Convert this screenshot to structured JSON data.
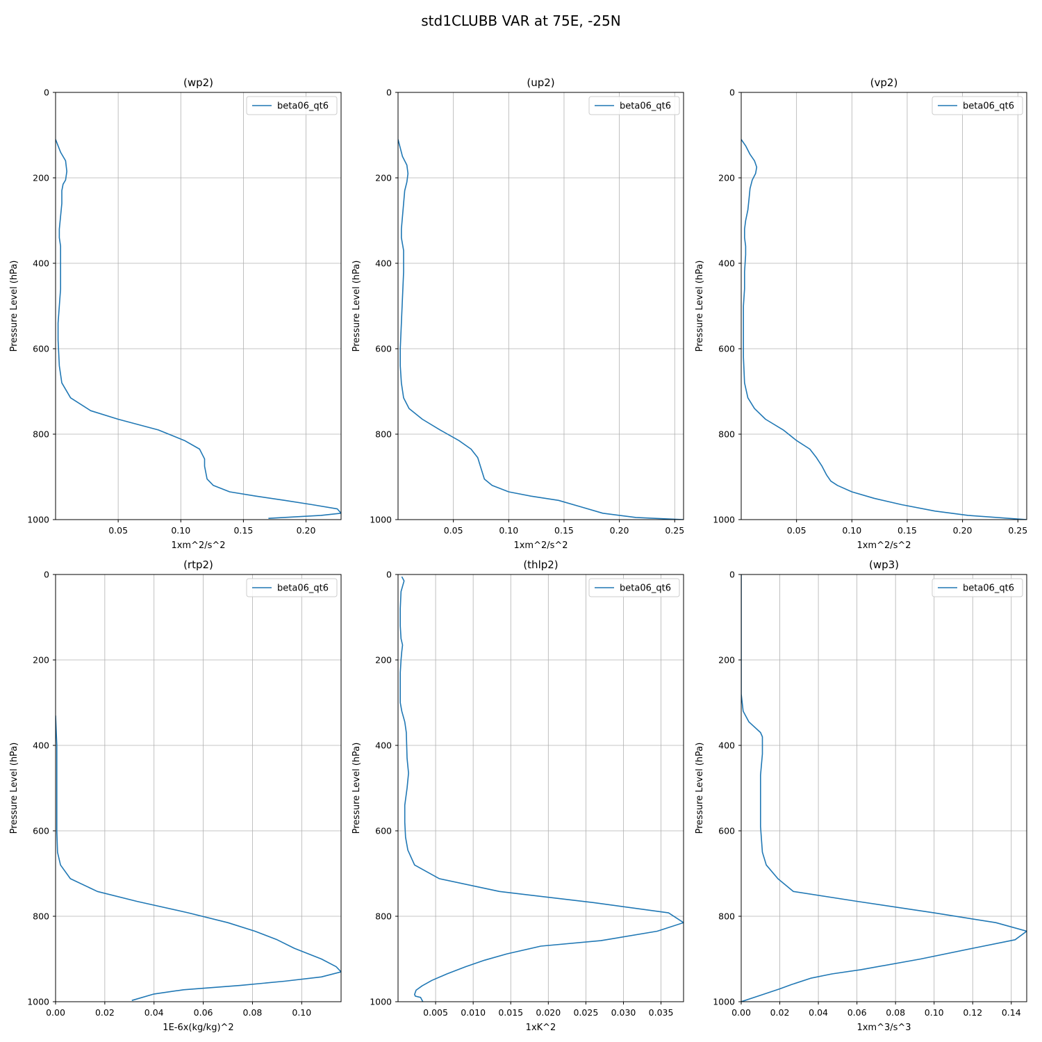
{
  "figure": {
    "title": "std1CLUBB VAR at 75E, -25N",
    "line_color": "#1f77b4"
  },
  "chart_data": [
    {
      "type": "line",
      "title": "(wp2)",
      "xlabel": "1xm^2/s^2",
      "ylabel": "Pressure Level (hPa)",
      "xlim": [
        0.0,
        0.228
      ],
      "ylim": [
        1000,
        0
      ],
      "xticks": [
        0.05,
        0.1,
        0.15,
        0.2
      ],
      "xtick_labels": [
        "0.05",
        "0.10",
        "0.15",
        "0.20"
      ],
      "yticks": [
        0,
        200,
        400,
        600,
        800,
        1000
      ],
      "ytick_labels": [
        "0",
        "200",
        "400",
        "600",
        "800",
        "1000"
      ],
      "grid": true,
      "legend": "top-right",
      "series": [
        {
          "name": "beta06_qt6",
          "x": [
            0.0,
            0.004,
            0.008,
            0.009,
            0.008,
            0.006,
            0.005,
            0.005,
            0.004,
            0.003,
            0.003,
            0.004,
            0.004,
            0.004,
            0.004,
            0.003,
            0.002,
            0.002,
            0.003,
            0.005,
            0.012,
            0.028,
            0.05,
            0.082,
            0.103,
            0.115,
            0.119,
            0.119,
            0.121,
            0.126,
            0.139,
            0.16,
            0.183,
            0.205,
            0.225,
            0.228,
            0.212,
            0.17
          ],
          "y": [
            110,
            140,
            160,
            185,
            205,
            215,
            230,
            260,
            290,
            320,
            340,
            360,
            380,
            420,
            460,
            500,
            540,
            580,
            640,
            680,
            715,
            745,
            765,
            790,
            815,
            835,
            858,
            875,
            905,
            920,
            935,
            945,
            955,
            965,
            975,
            985,
            990,
            997
          ]
        }
      ]
    },
    {
      "type": "line",
      "title": "(up2)",
      "xlabel": "1xm^2/s^2",
      "ylabel": "Pressure Level (hPa)",
      "xlim": [
        0.0,
        0.258
      ],
      "ylim": [
        1000,
        0
      ],
      "xticks": [
        0.05,
        0.1,
        0.15,
        0.2,
        0.25
      ],
      "xtick_labels": [
        "0.05",
        "0.10",
        "0.15",
        "0.20",
        "0.25"
      ],
      "yticks": [
        0,
        200,
        400,
        600,
        800,
        1000
      ],
      "ytick_labels": [
        "0",
        "200",
        "400",
        "600",
        "800",
        "1000"
      ],
      "grid": true,
      "legend": "top-right",
      "series": [
        {
          "name": "beta06_qt6",
          "x": [
            0.0,
            0.004,
            0.008,
            0.009,
            0.008,
            0.006,
            0.005,
            0.004,
            0.003,
            0.003,
            0.005,
            0.005,
            0.004,
            0.003,
            0.002,
            0.002,
            0.003,
            0.005,
            0.01,
            0.022,
            0.038,
            0.055,
            0.066,
            0.072,
            0.075,
            0.078,
            0.085,
            0.1,
            0.12,
            0.145,
            0.165,
            0.185,
            0.215,
            0.258
          ],
          "y": [
            110,
            150,
            170,
            190,
            210,
            230,
            260,
            290,
            320,
            340,
            370,
            420,
            480,
            540,
            600,
            640,
            680,
            715,
            740,
            765,
            790,
            815,
            835,
            855,
            880,
            905,
            920,
            935,
            945,
            955,
            970,
            985,
            995,
            1000
          ]
        }
      ]
    },
    {
      "type": "line",
      "title": "(vp2)",
      "xlabel": "1xm^2/s^2",
      "ylabel": "Pressure Level (hPa)",
      "xlim": [
        0.0,
        0.258
      ],
      "ylim": [
        1000,
        0
      ],
      "xticks": [
        0.05,
        0.1,
        0.15,
        0.2,
        0.25
      ],
      "xtick_labels": [
        "0.05",
        "0.10",
        "0.15",
        "0.20",
        "0.25"
      ],
      "yticks": [
        0,
        200,
        400,
        600,
        800,
        1000
      ],
      "ytick_labels": [
        "0",
        "200",
        "400",
        "600",
        "800",
        "1000"
      ],
      "grid": true,
      "legend": "top-right",
      "series": [
        {
          "name": "beta06_qt6",
          "x": [
            0.0,
            0.004,
            0.008,
            0.012,
            0.014,
            0.013,
            0.01,
            0.008,
            0.007,
            0.006,
            0.004,
            0.003,
            0.003,
            0.004,
            0.004,
            0.003,
            0.003,
            0.002,
            0.002,
            0.002,
            0.003,
            0.006,
            0.012,
            0.022,
            0.038,
            0.05,
            0.062,
            0.068,
            0.073,
            0.077,
            0.081,
            0.087,
            0.1,
            0.12,
            0.145,
            0.175,
            0.205,
            0.258
          ],
          "y": [
            110,
            125,
            145,
            160,
            175,
            190,
            205,
            225,
            250,
            275,
            300,
            320,
            340,
            360,
            380,
            420,
            460,
            500,
            560,
            620,
            680,
            715,
            740,
            765,
            790,
            815,
            835,
            855,
            875,
            895,
            910,
            920,
            935,
            950,
            965,
            980,
            990,
            1000
          ]
        }
      ]
    },
    {
      "type": "line",
      "title": "(rtp2)",
      "xlabel": "1E-6x(kg/kg)^2",
      "ylabel": "Pressure Level (hPa)",
      "xlim": [
        0.0,
        0.116
      ],
      "ylim": [
        1000,
        0
      ],
      "xticks": [
        0.0,
        0.02,
        0.04,
        0.06,
        0.08,
        0.1
      ],
      "xtick_labels": [
        "0.00",
        "0.02",
        "0.04",
        "0.06",
        "0.08",
        "0.10"
      ],
      "yticks": [
        0,
        200,
        400,
        600,
        800,
        1000
      ],
      "ytick_labels": [
        "0",
        "200",
        "400",
        "600",
        "800",
        "1000"
      ],
      "grid": true,
      "legend": "top-right",
      "series": [
        {
          "name": "beta06_qt6",
          "x": [
            0.0,
            0.0005,
            0.0005,
            0.0005,
            0.0008,
            0.002,
            0.006,
            0.017,
            0.033,
            0.054,
            0.07,
            0.081,
            0.09,
            0.097,
            0.108,
            0.114,
            0.116,
            0.108,
            0.093,
            0.075,
            0.052,
            0.04,
            0.031
          ],
          "y": [
            330,
            400,
            500,
            600,
            650,
            680,
            712,
            742,
            765,
            792,
            815,
            835,
            855,
            875,
            900,
            918,
            930,
            942,
            952,
            962,
            972,
            982,
            997
          ]
        }
      ]
    },
    {
      "type": "line",
      "title": "(thlp2)",
      "xlabel": "1xK^2",
      "ylabel": "Pressure Level (hPa)",
      "xlim": [
        0.0,
        0.038
      ],
      "ylim": [
        1000,
        0
      ],
      "xticks": [
        0.005,
        0.01,
        0.015,
        0.02,
        0.025,
        0.03,
        0.035
      ],
      "xtick_labels": [
        "0.005",
        "0.010",
        "0.015",
        "0.020",
        "0.025",
        "0.030",
        "0.035"
      ],
      "yticks": [
        0,
        200,
        400,
        600,
        800,
        1000
      ],
      "ytick_labels": [
        "0",
        "200",
        "400",
        "600",
        "800",
        "1000"
      ],
      "grid": true,
      "legend": "top-right",
      "series": [
        {
          "name": "beta06_qt6",
          "x": [
            0.0005,
            0.0008,
            0.0004,
            0.0003,
            0.0003,
            0.0004,
            0.0006,
            0.0005,
            0.0004,
            0.0003,
            0.0003,
            0.0003,
            0.0003,
            0.0005,
            0.0009,
            0.0011,
            0.0012,
            0.0014,
            0.0012,
            0.0009,
            0.0009,
            0.001,
            0.0013,
            0.0022,
            0.0055,
            0.0135,
            0.026,
            0.036,
            0.038,
            0.0345,
            0.027,
            0.019,
            0.0145,
            0.0115,
            0.009,
            0.0065,
            0.0045,
            0.0032,
            0.0024,
            0.0022,
            0.0023,
            0.003,
            0.0033
          ],
          "y": [
            5,
            15,
            40,
            80,
            120,
            150,
            165,
            180,
            200,
            230,
            260,
            280,
            300,
            320,
            345,
            370,
            430,
            465,
            500,
            540,
            580,
            615,
            645,
            680,
            712,
            742,
            768,
            792,
            815,
            835,
            857,
            870,
            888,
            903,
            918,
            935,
            950,
            963,
            973,
            983,
            987,
            990,
            1000
          ]
        }
      ]
    },
    {
      "type": "line",
      "title": "(wp3)",
      "xlabel": "1xm^3/s^3",
      "ylabel": "Pressure Level (hPa)",
      "xlim": [
        0.0,
        0.148
      ],
      "ylim": [
        1000,
        0
      ],
      "xticks": [
        0.0,
        0.02,
        0.04,
        0.06,
        0.08,
        0.1,
        0.12,
        0.14
      ],
      "xtick_labels": [
        "0.00",
        "0.02",
        "0.04",
        "0.06",
        "0.08",
        "0.10",
        "0.12",
        "0.14"
      ],
      "yticks": [
        0,
        200,
        400,
        600,
        800,
        1000
      ],
      "ytick_labels": [
        "0",
        "200",
        "400",
        "600",
        "800",
        "1000"
      ],
      "grid": true,
      "legend": "top-right",
      "series": [
        {
          "name": "beta06_qt6",
          "x": [
            0.0,
            0.0,
            0.0,
            0.0,
            0.0,
            0.0,
            0.001,
            0.004,
            0.01,
            0.011,
            0.011,
            0.01,
            0.01,
            0.01,
            0.011,
            0.013,
            0.019,
            0.027,
            0.06,
            0.1,
            0.132,
            0.148,
            0.142,
            0.12,
            0.093,
            0.062,
            0.047,
            0.036,
            0.026,
            0.02,
            0.01,
            0.0
          ],
          "y": [
            0,
            50,
            100,
            150,
            200,
            280,
            320,
            345,
            370,
            380,
            420,
            470,
            530,
            590,
            650,
            680,
            712,
            742,
            765,
            792,
            815,
            835,
            855,
            875,
            900,
            925,
            935,
            945,
            960,
            970,
            985,
            1000
          ]
        }
      ]
    }
  ]
}
